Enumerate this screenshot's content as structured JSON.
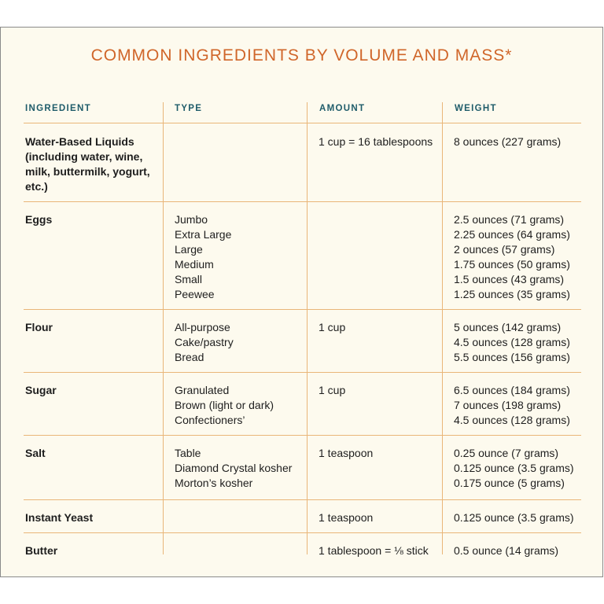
{
  "title": "COMMON INGREDIENTS BY VOLUME AND MASS*",
  "headers": {
    "ingredient": "INGREDIENT",
    "type": "TYPE",
    "amount": "AMOUNT",
    "weight": "WEIGHT"
  },
  "rows": [
    {
      "name": "Water-Based Liquids (including water, wine, milk, buttermilk, yogurt, etc.)",
      "types": [],
      "amount": "1 cup = 16 tablespoons",
      "weights": [
        "8 ounces (227 grams)"
      ]
    },
    {
      "name": "Eggs",
      "types": [
        "Jumbo",
        "Extra Large",
        "Large",
        "Medium",
        "Small",
        "Peewee"
      ],
      "amount": "",
      "weights": [
        "2.5 ounces (71 grams)",
        "2.25 ounces (64 grams)",
        "2 ounces (57 grams)",
        "1.75 ounces (50 grams)",
        "1.5 ounces (43 grams)",
        "1.25 ounces (35 grams)"
      ]
    },
    {
      "name": "Flour",
      "types": [
        "All-purpose",
        "Cake/pastry",
        "Bread"
      ],
      "amount": "1 cup",
      "weights": [
        "5 ounces (142 grams)",
        "4.5 ounces (128 grams)",
        "5.5 ounces (156 grams)"
      ]
    },
    {
      "name": "Sugar",
      "types": [
        "Granulated",
        "Brown (light or dark)",
        "Confectioners’"
      ],
      "amount": "1 cup",
      "weights": [
        "6.5 ounces (184 grams)",
        "7 ounces (198 grams)",
        "4.5 ounces (128 grams)"
      ]
    },
    {
      "name": "Salt",
      "types": [
        "Table",
        "Diamond Crystal kosher",
        "Morton’s kosher"
      ],
      "amount": "1 teaspoon",
      "weights": [
        "0.25 ounce (7 grams)",
        "0.125 ounce (3.5 grams)",
        "0.175 ounce (5 grams)"
      ]
    },
    {
      "name": "Instant Yeast",
      "types": [],
      "amount": "1 teaspoon",
      "weights": [
        "0.125 ounce (3.5 grams)"
      ]
    },
    {
      "name": "Butter",
      "types": [],
      "amount": "1 tablespoon = ⅛ stick",
      "weights": [
        "0.5 ounce (14 grams)"
      ]
    }
  ]
}
